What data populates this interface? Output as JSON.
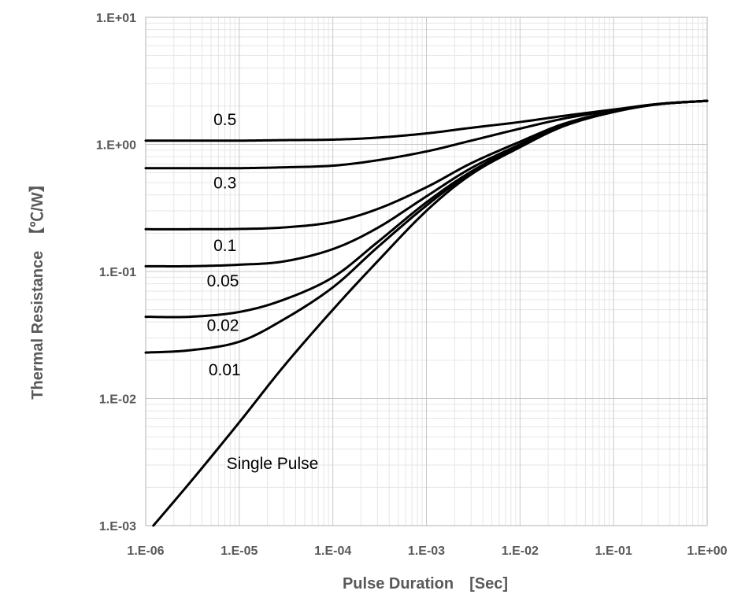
{
  "chart_data": {
    "type": "line",
    "title": "",
    "xlabel": "Pulse Duration　[Sec]",
    "ylabel": "Thermal Resistance　【℃/W】",
    "x_scale": "log",
    "y_scale": "log",
    "xlim": [
      1e-06,
      1
    ],
    "ylim": [
      0.001,
      10
    ],
    "grid": true,
    "x_tick_labels": [
      "1.E-06",
      "1.E-05",
      "1.E-04",
      "1.E-03",
      "1.E-02",
      "1.E-01",
      "1.E+00"
    ],
    "y_tick_labels": [
      "1.E-03",
      "1.E-02",
      "1.E-01",
      "1.E+00",
      "1.E+01"
    ],
    "x_tick_values": [
      1e-06,
      1e-05,
      0.0001,
      0.001,
      0.01,
      0.1,
      1
    ],
    "y_tick_values": [
      0.001,
      0.01,
      0.1,
      1,
      10
    ],
    "x": [
      1e-06,
      3e-06,
      1e-05,
      3e-05,
      0.0001,
      0.0003,
      0.001,
      0.003,
      0.01,
      0.03,
      0.1,
      0.3,
      1
    ],
    "series": [
      {
        "name": "0.5",
        "label_x": 5.3e-06,
        "label_y": 1.42,
        "values": [
          1.07,
          1.07,
          1.07,
          1.08,
          1.09,
          1.13,
          1.22,
          1.35,
          1.5,
          1.68,
          1.88,
          2.08,
          2.2
        ]
      },
      {
        "name": "0.3",
        "label_x": 5.3e-06,
        "label_y": 0.45,
        "values": [
          0.65,
          0.65,
          0.65,
          0.66,
          0.68,
          0.75,
          0.88,
          1.07,
          1.33,
          1.6,
          1.86,
          2.08,
          2.2
        ]
      },
      {
        "name": "0.1",
        "label_x": 5.3e-06,
        "label_y": 0.145,
        "values": [
          0.215,
          0.215,
          0.216,
          0.222,
          0.245,
          0.31,
          0.46,
          0.71,
          1.05,
          1.46,
          1.82,
          2.07,
          2.2
        ]
      },
      {
        "name": "0.05",
        "label_x": 4.5e-06,
        "label_y": 0.076,
        "values": [
          0.11,
          0.11,
          0.113,
          0.12,
          0.15,
          0.22,
          0.39,
          0.65,
          1.0,
          1.43,
          1.81,
          2.07,
          2.2
        ]
      },
      {
        "name": "0.02",
        "label_x": 4.5e-06,
        "label_y": 0.034,
        "values": [
          0.044,
          0.044,
          0.048,
          0.06,
          0.09,
          0.17,
          0.35,
          0.61,
          0.98,
          1.42,
          1.8,
          2.07,
          2.2
        ]
      },
      {
        "name": "0.01",
        "label_x": 4.7e-06,
        "label_y": 0.0152,
        "values": [
          0.023,
          0.024,
          0.028,
          0.042,
          0.075,
          0.155,
          0.33,
          0.6,
          0.97,
          1.41,
          1.8,
          2.07,
          2.2
        ]
      },
      {
        "name": "Single Pulse",
        "label_x": 7.3e-06,
        "label_y": 0.0028,
        "values": [
          0.00085,
          0.0022,
          0.0065,
          0.018,
          0.05,
          0.12,
          0.3,
          0.58,
          0.95,
          1.4,
          1.8,
          2.07,
          2.2
        ]
      }
    ]
  }
}
